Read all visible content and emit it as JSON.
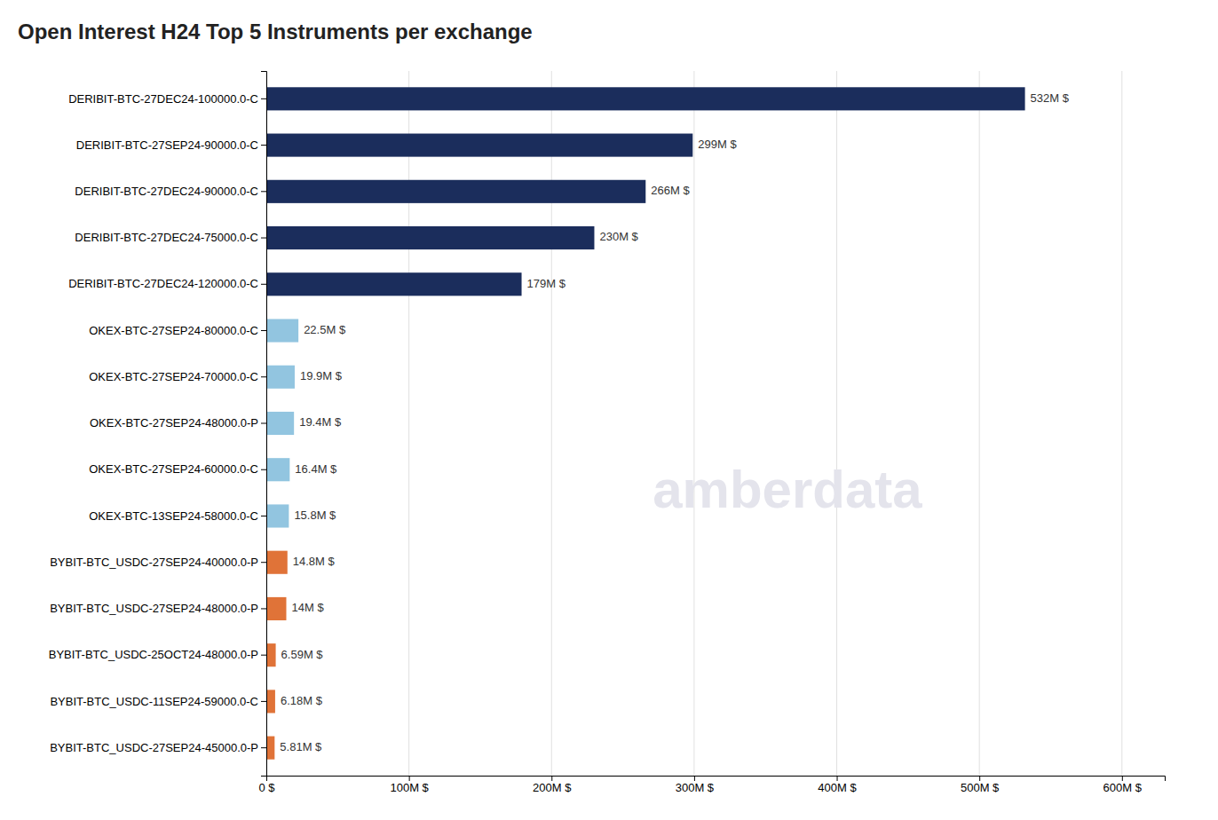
{
  "chart_data": {
    "type": "bar",
    "orientation": "horizontal",
    "title": "Open Interest H24 Top 5 Instruments per exchange",
    "categories": [
      "DERIBIT-BTC-27DEC24-100000.0-C",
      "DERIBIT-BTC-27SEP24-90000.0-C",
      "DERIBIT-BTC-27DEC24-90000.0-C",
      "DERIBIT-BTC-27DEC24-75000.0-C",
      "DERIBIT-BTC-27DEC24-120000.0-C",
      "OKEX-BTC-27SEP24-80000.0-C",
      "OKEX-BTC-27SEP24-70000.0-C",
      "OKEX-BTC-27SEP24-48000.0-P",
      "OKEX-BTC-27SEP24-60000.0-C",
      "OKEX-BTC-13SEP24-58000.0-C",
      "BYBIT-BTC_USDC-27SEP24-40000.0-P",
      "BYBIT-BTC_USDC-27SEP24-48000.0-P",
      "BYBIT-BTC_USDC-25OCT24-48000.0-P",
      "BYBIT-BTC_USDC-11SEP24-59000.0-C",
      "BYBIT-BTC_USDC-27SEP24-45000.0-P"
    ],
    "values": [
      532,
      299,
      266,
      230,
      179,
      22.5,
      19.9,
      19.4,
      16.4,
      15.8,
      14.8,
      14,
      6.59,
      6.18,
      5.81
    ],
    "value_labels": [
      "532M $",
      "299M $",
      "266M $",
      "230M $",
      "179M $",
      "22.5M $",
      "19.9M $",
      "19.4M $",
      "16.4M $",
      "15.8M $",
      "14.8M $",
      "14M $",
      "6.59M $",
      "6.18M $",
      "5.81M $"
    ],
    "data_labels": true,
    "colors": [
      "#1b2d5c",
      "#1b2d5c",
      "#1b2d5c",
      "#1b2d5c",
      "#1b2d5c",
      "#92c5e0",
      "#92c5e0",
      "#92c5e0",
      "#92c5e0",
      "#92c5e0",
      "#e07338",
      "#e07338",
      "#e07338",
      "#e07338",
      "#e07338"
    ],
    "xlim": [
      0,
      630
    ],
    "xticks": [
      {
        "value": 0,
        "label": "0 $"
      },
      {
        "value": 100,
        "label": "100M $"
      },
      {
        "value": 200,
        "label": "200M $"
      },
      {
        "value": 300,
        "label": "300M $"
      },
      {
        "value": 400,
        "label": "400M $"
      },
      {
        "value": 500,
        "label": "500M $"
      },
      {
        "value": 600,
        "label": "600M $"
      }
    ],
    "grid": true,
    "annotations": [
      "amberdata"
    ]
  }
}
